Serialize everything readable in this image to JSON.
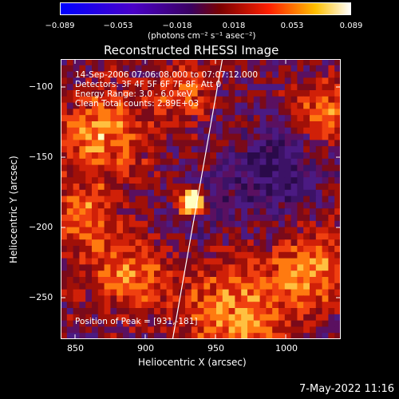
{
  "colorbar": {
    "ticks": [
      "−0.089",
      "−0.053",
      "−0.018",
      "0.018",
      "0.053",
      "0.089"
    ],
    "unit": "(photons cm⁻² s⁻¹ asec⁻²)"
  },
  "title": "Reconstructed RHESSI Image",
  "annotations": {
    "time": "14-Sep-2006 07:06:08.000 to 07:07:12.000",
    "detectors": "Detectors: 3F 4F 5F 6F 7F 8F, Att 0",
    "energy": "Energy Range: 3.0 - 6.0 keV",
    "clean": "Clean     Total counts: 2.89E+03",
    "peak": "Position of Peak = [931,-181]"
  },
  "axes": {
    "xlabel": "Heliocentric X (arcsec)",
    "ylabel": "Heliocentric Y (arcsec)",
    "xticks": [
      "850",
      "900",
      "950",
      "1000"
    ],
    "yticks": [
      "−100",
      "−150",
      "−200",
      "−250"
    ]
  },
  "timestamp": "7-May-2022 11:16"
}
